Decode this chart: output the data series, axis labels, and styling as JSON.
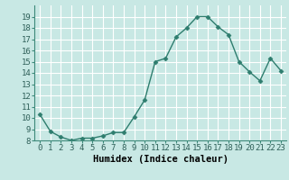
{
  "x": [
    0,
    1,
    2,
    3,
    4,
    5,
    6,
    7,
    8,
    9,
    10,
    11,
    12,
    13,
    14,
    15,
    16,
    17,
    18,
    19,
    20,
    21,
    22,
    23
  ],
  "y": [
    10.3,
    8.8,
    8.3,
    8.0,
    8.2,
    8.2,
    8.4,
    8.7,
    8.7,
    10.1,
    11.6,
    15.0,
    15.3,
    17.2,
    18.0,
    19.0,
    19.0,
    18.1,
    17.4,
    15.0,
    14.1,
    13.3,
    15.3,
    14.2
  ],
  "line_color": "#2e7d6e",
  "marker": "D",
  "markersize": 2.5,
  "background_color": "#c8e8e4",
  "grid_color": "#ffffff",
  "xlabel": "Humidex (Indice chaleur)",
  "ylim": [
    8,
    20
  ],
  "xlim": [
    -0.5,
    23.5
  ],
  "yticks": [
    8,
    9,
    10,
    11,
    12,
    13,
    14,
    15,
    16,
    17,
    18,
    19
  ],
  "xticks": [
    0,
    1,
    2,
    3,
    4,
    5,
    6,
    7,
    8,
    9,
    10,
    11,
    12,
    13,
    14,
    15,
    16,
    17,
    18,
    19,
    20,
    21,
    22,
    23
  ],
  "xlabel_fontsize": 7.5,
  "tick_fontsize": 6.5,
  "linewidth": 1.0
}
